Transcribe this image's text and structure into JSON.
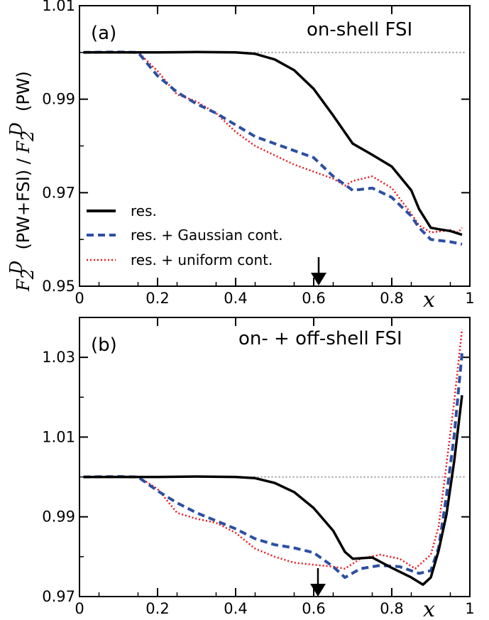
{
  "chart_data": {
    "type": "line",
    "ylabel": {
      "part1_main": "F",
      "part1_sub": "2",
      "part1_sup": "D",
      "part2": "  (PW+FSI) / ",
      "part3_main": "F",
      "part3_sub": "2",
      "part3_sup": "D",
      "part4": "  (PW)"
    },
    "xvar": "x",
    "legend": {
      "placement": "lower-left of panel (a)",
      "entries": [
        "res.",
        "res. + Gaussian cont.",
        "res. + uniform cont."
      ]
    },
    "series_style": [
      {
        "color": "#000000",
        "dash": "solid"
      },
      {
        "color": "#2c4fa2",
        "dash": "dashed"
      },
      {
        "color": "#e8161b",
        "dash": "dotted"
      }
    ],
    "reference_line": {
      "y": 1.0,
      "color": "#999999",
      "style": "dotted"
    },
    "arrow_at_x": 0.61,
    "panels": [
      {
        "label": "(a)",
        "title": "on-shell FSI",
        "xlim": [
          0,
          1
        ],
        "ylim": [
          0.95,
          1.01
        ],
        "xticks": [
          0,
          0.2,
          0.4,
          0.6,
          0.8,
          1
        ],
        "xtick_labels": [
          "0",
          "0.2",
          "0.4",
          "0.6",
          "0.8",
          "1"
        ],
        "yticks": [
          0.95,
          0.97,
          0.99,
          1.01
        ],
        "ytick_labels": [
          "0.95",
          "0.97",
          "0.99",
          "1.01"
        ],
        "series": [
          {
            "x": [
              0.01,
              0.1,
              0.2,
              0.3,
              0.4,
              0.45,
              0.5,
              0.55,
              0.6,
              0.65,
              0.7,
              0.75,
              0.8,
              0.85,
              0.87,
              0.9,
              0.92,
              0.95,
              0.98
            ],
            "y": [
              1.0,
              1.0,
              1.0,
              1.0001,
              1.0,
              0.9997,
              0.9985,
              0.9962,
              0.9922,
              0.9865,
              0.9805,
              0.9781,
              0.9756,
              0.9705,
              0.9665,
              0.9625,
              0.9622,
              0.9618,
              0.961
            ]
          },
          {
            "x": [
              0.01,
              0.1,
              0.15,
              0.2,
              0.25,
              0.3,
              0.35,
              0.4,
              0.45,
              0.5,
              0.55,
              0.6,
              0.65,
              0.7,
              0.75,
              0.8,
              0.85,
              0.87,
              0.9,
              0.95,
              0.98
            ],
            "y": [
              1.0,
              1.0001,
              1.0,
              0.995,
              0.9915,
              0.989,
              0.987,
              0.9845,
              0.982,
              0.9805,
              0.979,
              0.9775,
              0.9735,
              0.9705,
              0.971,
              0.969,
              0.965,
              0.9625,
              0.96,
              0.9595,
              0.959
            ]
          },
          {
            "x": [
              0.01,
              0.1,
              0.15,
              0.2,
              0.25,
              0.3,
              0.35,
              0.4,
              0.45,
              0.5,
              0.55,
              0.6,
              0.65,
              0.68,
              0.7,
              0.75,
              0.8,
              0.85,
              0.87,
              0.9,
              0.95,
              0.97,
              0.98
            ],
            "y": [
              1.0,
              1.0001,
              1.0001,
              0.996,
              0.991,
              0.9895,
              0.987,
              0.983,
              0.98,
              0.978,
              0.976,
              0.9745,
              0.973,
              0.9715,
              0.9725,
              0.9735,
              0.971,
              0.9655,
              0.963,
              0.9615,
              0.962,
              0.9615,
              0.9625
            ]
          }
        ]
      },
      {
        "label": "(b)",
        "title": "on- + off-shell FSI",
        "xlim": [
          0,
          1
        ],
        "ylim": [
          0.97,
          1.04
        ],
        "xticks": [
          0,
          0.2,
          0.4,
          0.6,
          0.8,
          1
        ],
        "xtick_labels": [
          "0",
          "0.2",
          "0.4",
          "0.6",
          "0.8",
          "1"
        ],
        "yticks": [
          0.97,
          0.99,
          1.01,
          1.03
        ],
        "ytick_labels": [
          "0.97",
          "0.99",
          "1.01",
          "1.03"
        ],
        "series": [
          {
            "x": [
              0.01,
              0.1,
              0.2,
              0.3,
              0.4,
              0.45,
              0.5,
              0.55,
              0.6,
              0.65,
              0.68,
              0.7,
              0.75,
              0.8,
              0.85,
              0.88,
              0.9,
              0.92,
              0.94,
              0.96,
              0.98
            ],
            "y": [
              1.0,
              1.0,
              1.0,
              1.0001,
              1.0,
              0.9997,
              0.9985,
              0.9962,
              0.9922,
              0.9865,
              0.9812,
              0.9795,
              0.9798,
              0.9772,
              0.9748,
              0.973,
              0.9748,
              0.9815,
              0.9905,
              1.004,
              1.0205
            ]
          },
          {
            "x": [
              0.01,
              0.1,
              0.15,
              0.2,
              0.25,
              0.3,
              0.35,
              0.4,
              0.45,
              0.5,
              0.55,
              0.6,
              0.65,
              0.68,
              0.72,
              0.77,
              0.82,
              0.87,
              0.9,
              0.92,
              0.94,
              0.96,
              0.98
            ],
            "y": [
              1.0,
              1.0001,
              1.0,
              0.9965,
              0.9935,
              0.991,
              0.989,
              0.987,
              0.9845,
              0.983,
              0.9822,
              0.981,
              0.9775,
              0.9748,
              0.977,
              0.9778,
              0.9775,
              0.9758,
              0.9765,
              0.9822,
              0.9952,
              1.0105,
              1.031
            ]
          },
          {
            "x": [
              0.01,
              0.1,
              0.15,
              0.2,
              0.25,
              0.3,
              0.35,
              0.4,
              0.45,
              0.5,
              0.55,
              0.6,
              0.65,
              0.68,
              0.72,
              0.77,
              0.82,
              0.86,
              0.9,
              0.92,
              0.94,
              0.96,
              0.98
            ],
            "y": [
              1.0,
              1.0001,
              1.0001,
              0.997,
              0.991,
              0.9895,
              0.9885,
              0.986,
              0.982,
              0.98,
              0.9785,
              0.978,
              0.9775,
              0.977,
              0.9795,
              0.9805,
              0.9795,
              0.977,
              0.9805,
              0.9875,
              1.003,
              1.019,
              1.037
            ]
          }
        ]
      }
    ]
  }
}
